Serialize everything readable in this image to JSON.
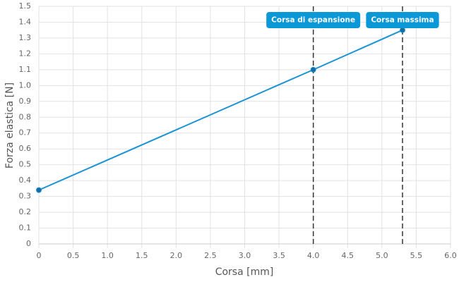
{
  "chart_data": {
    "type": "line",
    "x_label": "Corsa [mm]",
    "y_label": "Forza elastica [N]",
    "x": [
      0,
      4.0,
      5.3
    ],
    "values": [
      0.34,
      1.1,
      1.35
    ],
    "color": "#1a94d4",
    "marker_color": "#1b6a9c",
    "xlim": [
      0,
      6
    ],
    "xticks": [
      0,
      0.5,
      {
        "value": 1,
        "label": "1.0"
      },
      1.5,
      {
        "value": 2,
        "label": "2.0"
      },
      2.5,
      {
        "value": 3,
        "label": "3.0"
      },
      3.5,
      {
        "value": 4,
        "label": "4.0"
      },
      4.5,
      {
        "value": 5,
        "label": "5.0"
      },
      5.5,
      {
        "value": 6,
        "label": "6.0"
      }
    ],
    "ylim": [
      0,
      1.5
    ],
    "yticks": [
      0,
      0.1,
      0.2,
      0.3,
      0.4,
      0.5,
      0.6,
      0.7,
      0.8,
      0.9,
      {
        "value": 1,
        "label": "1.0"
      },
      1.1,
      1.2,
      1.3,
      1.4,
      1.5
    ],
    "grid": true,
    "annotations": [
      {
        "x": 4.0,
        "label": "Corsa di espansione"
      },
      {
        "x": 5.3,
        "label": "Corsa massima"
      }
    ],
    "annotation_color": "#0b98d6"
  }
}
